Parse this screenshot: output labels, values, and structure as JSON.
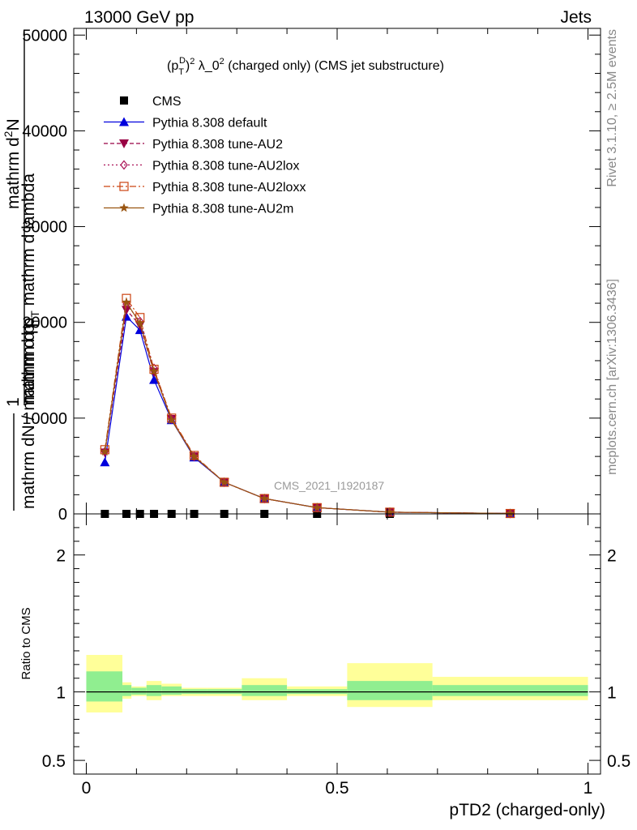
{
  "header": {
    "energy_label": "13000 GeV pp",
    "process_label": "Jets"
  },
  "side_text": {
    "rivet": "Rivet 3.1.10, ≥ 2.5M events",
    "mcplots": "mcplots.cern.ch [arXiv:1306.3436]"
  },
  "colors": {
    "cms": "#000000",
    "default": "#0000dd",
    "au2": "#990044",
    "au2lox": "#aa1155",
    "au2loxx": "#cc4411",
    "au2m": "#995511",
    "band_inner": "#90ee90",
    "band_outer": "#ffff99"
  },
  "chart_data": [
    {
      "type": "line",
      "panel": "main",
      "title": "(p_T^D)^2 λ_0^2 (charged only) (CMS jet substructure)",
      "title_parts": {
        "a": "(p",
        "sub": "T",
        "sup_d": "D",
        "b": ")",
        "sup2": "2",
        "c": " λ_0",
        "d": " (charged only) (CMS jet substructure)"
      },
      "ylabel": "1 / mathrm dN / mathrm d p_T mathrm d p_T mathrm d lambda   mathrm d^2N",
      "ylabel_parts": {
        "num1": "1",
        "den1": "mathrm dN / mathrm d p",
        "den1_sub": "T",
        "num2": "mathrm d",
        "num2_sup": "2",
        "num2_b": "N",
        "den2": "mathrm d p",
        "den2_sub": "T",
        "den2_b": " mathrm d lambda"
      },
      "watermark": "CMS_2021_I1920187",
      "xlim": [
        -0.025,
        1.025
      ],
      "ylim": [
        0,
        50700
      ],
      "yticks": [
        0,
        10000,
        20000,
        30000,
        40000,
        50000
      ],
      "yticklabels": [
        "0",
        "10000",
        "20000",
        "30000",
        "40000",
        "50000"
      ],
      "legend_position": "top-left",
      "series": [
        {
          "name": "CMS",
          "key": "cms",
          "marker": "square",
          "x": [
            0.037,
            0.08,
            0.107,
            0.135,
            0.17,
            0.215,
            0.275,
            0.355,
            0.46,
            0.605,
            0.845
          ],
          "y": [
            0,
            0,
            0,
            0,
            0,
            0,
            0,
            0,
            0,
            0,
            0
          ]
        },
        {
          "name": "Pythia 8.308 default",
          "key": "default",
          "marker": "triangle-up",
          "dash": "",
          "x": [
            0.037,
            0.08,
            0.107,
            0.135,
            0.17,
            0.215,
            0.275,
            0.355,
            0.46,
            0.605,
            0.845
          ],
          "y": [
            5400,
            20600,
            19200,
            14000,
            9800,
            5900,
            3300,
            1600,
            650,
            180,
            40
          ]
        },
        {
          "name": "Pythia 8.308 tune-AU2",
          "key": "au2",
          "marker": "triangle-down",
          "dash": "5,3",
          "x": [
            0.037,
            0.08,
            0.107,
            0.135,
            0.17,
            0.215,
            0.275,
            0.355,
            0.46,
            0.605,
            0.845
          ],
          "y": [
            6400,
            21300,
            19700,
            14800,
            9900,
            6000,
            3300,
            1600,
            650,
            180,
            40
          ]
        },
        {
          "name": "Pythia 8.308 tune-AU2lox",
          "key": "au2lox",
          "marker": "diamond",
          "dash": "2,3",
          "x": [
            0.037,
            0.08,
            0.107,
            0.135,
            0.17,
            0.215,
            0.275,
            0.355,
            0.46,
            0.605,
            0.845
          ],
          "y": [
            6500,
            21900,
            20100,
            15200,
            9900,
            6000,
            3300,
            1600,
            650,
            180,
            40
          ]
        },
        {
          "name": "Pythia 8.308 tune-AU2loxx",
          "key": "au2loxx",
          "marker": "square-open",
          "dash": "8,3,2,3",
          "x": [
            0.037,
            0.08,
            0.107,
            0.135,
            0.17,
            0.215,
            0.275,
            0.355,
            0.46,
            0.605,
            0.845
          ],
          "y": [
            6700,
            22500,
            20500,
            15100,
            10000,
            6100,
            3300,
            1600,
            650,
            180,
            40
          ]
        },
        {
          "name": "Pythia 8.308 tune-AU2m",
          "key": "au2m",
          "marker": "star",
          "dash": "",
          "x": [
            0.037,
            0.08,
            0.107,
            0.135,
            0.17,
            0.215,
            0.275,
            0.355,
            0.46,
            0.605,
            0.845
          ],
          "y": [
            6500,
            22100,
            19900,
            14900,
            9800,
            6000,
            3300,
            1600,
            650,
            180,
            40
          ]
        }
      ]
    },
    {
      "type": "area",
      "panel": "ratio",
      "ylabel": "Ratio to CMS",
      "xlabel": "pTD2 (charged-only)",
      "xlim": [
        -0.025,
        1.025
      ],
      "ylim": [
        0.4,
        2.3
      ],
      "xticks": [
        0,
        0.5,
        1
      ],
      "xticklabels": [
        "0",
        "0.5",
        "1"
      ],
      "yticks": [
        0.5,
        1,
        2
      ],
      "yticklabels": [
        "0.5",
        "1",
        "2"
      ],
      "bins": [
        {
          "lo": 0.0,
          "hi": 0.072,
          "inner": [
            0.93,
            1.15
          ],
          "outer": [
            0.85,
            1.27
          ]
        },
        {
          "lo": 0.072,
          "hi": 0.09,
          "inner": [
            0.97,
            1.05
          ],
          "outer": [
            0.95,
            1.07
          ]
        },
        {
          "lo": 0.09,
          "hi": 0.12,
          "inner": [
            0.98,
            1.03
          ],
          "outer": [
            0.97,
            1.04
          ]
        },
        {
          "lo": 0.12,
          "hi": 0.15,
          "inner": [
            0.97,
            1.05
          ],
          "outer": [
            0.94,
            1.08
          ]
        },
        {
          "lo": 0.15,
          "hi": 0.19,
          "inner": [
            0.98,
            1.04
          ],
          "outer": [
            0.97,
            1.06
          ]
        },
        {
          "lo": 0.19,
          "hi": 0.24,
          "inner": [
            0.985,
            1.02
          ],
          "outer": [
            0.97,
            1.03
          ]
        },
        {
          "lo": 0.24,
          "hi": 0.31,
          "inner": [
            0.985,
            1.02
          ],
          "outer": [
            0.97,
            1.03
          ]
        },
        {
          "lo": 0.31,
          "hi": 0.4,
          "inner": [
            0.97,
            1.05
          ],
          "outer": [
            0.94,
            1.1
          ]
        },
        {
          "lo": 0.4,
          "hi": 0.52,
          "inner": [
            0.985,
            1.02
          ],
          "outer": [
            0.97,
            1.04
          ]
        },
        {
          "lo": 0.52,
          "hi": 0.69,
          "inner": [
            0.94,
            1.08
          ],
          "outer": [
            0.89,
            1.21
          ]
        },
        {
          "lo": 0.69,
          "hi": 1.0,
          "inner": [
            0.97,
            1.05
          ],
          "outer": [
            0.94,
            1.11
          ]
        }
      ]
    }
  ]
}
